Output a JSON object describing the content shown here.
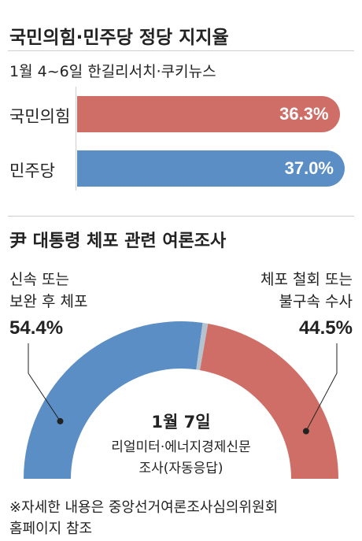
{
  "colors": {
    "party_a": "#cf6e67",
    "party_b": "#5b8ec4",
    "line": "#cfcfcf",
    "undecided": "#b5c3cf"
  },
  "chart_data": [
    {
      "type": "bar",
      "title": "국민의힘·민주당 정당 지지율",
      "subtitle": "1월 4~6일 한길리서치·쿠키뉴스",
      "categories": [
        "국민의힘",
        "민주당"
      ],
      "values": [
        36.3,
        37.0
      ],
      "value_labels": [
        "36.3%",
        "37.0%"
      ],
      "colors": [
        "#cf6e67",
        "#5b8ec4"
      ]
    },
    {
      "type": "pie",
      "title": "尹 대통령 체포 관련 여론조사",
      "labels": [
        "신속 또는 보완 후 체포",
        "체포 철회 또는 불구속 수사"
      ],
      "label_lines": [
        [
          "신속 또는",
          "보완 후 체포"
        ],
        [
          "체포 철회 또는",
          "불구속 수사"
        ]
      ],
      "values": [
        54.4,
        44.5
      ],
      "value_labels": [
        "54.4%",
        "44.5%"
      ],
      "colors": [
        "#5b8ec4",
        "#cf6e67"
      ],
      "center": {
        "date": "1월 7일",
        "source": "리얼미터·에너지경제신문",
        "method": "조사(자동응답)"
      }
    }
  ],
  "footnote": {
    "line1": "※자세한 내용은 중앙선거여론조사심의위원회",
    "line2": "홈페이지 참조"
  }
}
